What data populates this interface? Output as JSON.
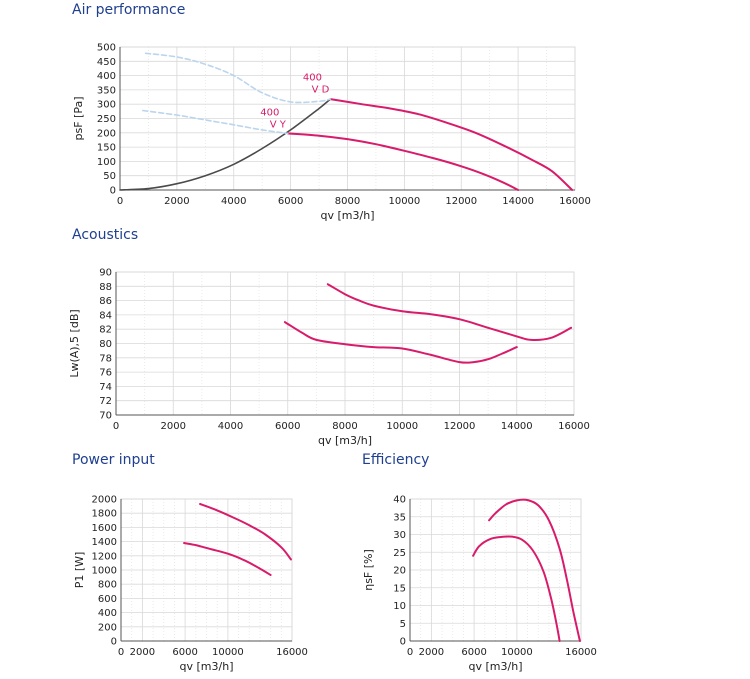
{
  "sections": {
    "air": "Air performance",
    "acoustics": "Acoustics",
    "power": "Power input",
    "efficiency": "Efficiency"
  },
  "colors": {
    "curve": "#d81b6a",
    "system": "#4a4a4a",
    "dashed": "#bcd5ee",
    "grid": "#d9d9d9",
    "title": "#1f3f8f"
  },
  "chart_data": [
    {
      "id": "air",
      "type": "line",
      "title": "Air performance",
      "xlabel": "qv [m3/h]",
      "ylabel": "psF [Pa]",
      "xlim": [
        0,
        16000
      ],
      "ylim": [
        0,
        500
      ],
      "xticks": [
        0,
        2000,
        4000,
        6000,
        8000,
        10000,
        12000,
        14000,
        16000
      ],
      "yticks": [
        0,
        50,
        100,
        150,
        200,
        250,
        300,
        350,
        400,
        450,
        500
      ],
      "grid": true,
      "series": [
        {
          "name": "400 V D",
          "style": "curve",
          "label": [
            "400",
            "V D"
          ],
          "label_at": [
            7400,
            320
          ],
          "x": [
            7400,
            8500,
            9500,
            10500,
            11500,
            12500,
            13500,
            14500,
            15200,
            15900
          ],
          "y": [
            318,
            300,
            285,
            265,
            235,
            200,
            155,
            105,
            65,
            0
          ]
        },
        {
          "name": "400 V Y",
          "style": "curve",
          "label": [
            "400",
            "V Y"
          ],
          "label_at": [
            5900,
            198
          ],
          "x": [
            5900,
            7000,
            8000,
            9000,
            10000,
            11000,
            12000,
            12800,
            13500,
            14000
          ],
          "y": [
            198,
            190,
            178,
            160,
            137,
            112,
            83,
            55,
            25,
            0
          ]
        },
        {
          "style": "system",
          "x": [
            0,
            1000,
            2000,
            3000,
            4000,
            5000,
            6000,
            7000,
            7400
          ],
          "y": [
            0,
            5,
            22,
            50,
            90,
            145,
            210,
            285,
            318
          ]
        },
        {
          "style": "dashed",
          "x": [
            900,
            2000,
            3000,
            4000,
            5000,
            6000,
            7000,
            7400
          ],
          "y": [
            478,
            465,
            440,
            400,
            340,
            308,
            310,
            318
          ]
        },
        {
          "style": "dashed",
          "x": [
            800,
            2000,
            3000,
            4000,
            5000,
            5900
          ],
          "y": [
            278,
            262,
            245,
            228,
            210,
            198
          ]
        }
      ]
    },
    {
      "id": "acoustics",
      "type": "line",
      "title": "Acoustics",
      "xlabel": "qv [m3/h]",
      "ylabel": "Lw(A),5 [dB]",
      "xlim": [
        0,
        16000
      ],
      "ylim": [
        70,
        90
      ],
      "xticks": [
        0,
        2000,
        4000,
        6000,
        8000,
        10000,
        12000,
        14000,
        16000
      ],
      "yticks": [
        70,
        72,
        74,
        76,
        78,
        80,
        82,
        84,
        86,
        88,
        90
      ],
      "grid": true,
      "series": [
        {
          "style": "curve",
          "x": [
            7400,
            8000,
            8500,
            9000,
            10000,
            11000,
            12000,
            13000,
            14000,
            14500,
            15200,
            15900
          ],
          "y": [
            88.3,
            86.9,
            86.0,
            85.3,
            84.5,
            84.1,
            83.4,
            82.2,
            81.0,
            80.5,
            80.8,
            82.2
          ]
        },
        {
          "style": "curve",
          "x": [
            5900,
            6500,
            7000,
            8000,
            9000,
            10000,
            11000,
            12000,
            12500,
            13000,
            13500,
            14000
          ],
          "y": [
            83.0,
            81.5,
            80.5,
            79.9,
            79.5,
            79.3,
            78.4,
            77.4,
            77.4,
            77.8,
            78.6,
            79.5
          ]
        }
      ]
    },
    {
      "id": "power",
      "type": "line",
      "title": "Power input",
      "xlabel": "qv [m3/h]",
      "ylabel": "P1 [W]",
      "xlim": [
        0,
        16000
      ],
      "ylim": [
        0,
        2000
      ],
      "xticks": [
        0,
        2000,
        6000,
        10000,
        16000
      ],
      "yticks": [
        0,
        200,
        400,
        600,
        800,
        1000,
        1200,
        1400,
        1600,
        1800,
        2000
      ],
      "grid": true,
      "series": [
        {
          "style": "curve",
          "x": [
            7400,
            9000,
            10500,
            12000,
            13500,
            15000,
            15900
          ],
          "y": [
            1930,
            1840,
            1740,
            1630,
            1500,
            1320,
            1150
          ]
        },
        {
          "style": "curve",
          "x": [
            5900,
            7000,
            8500,
            10000,
            11500,
            13000,
            14000
          ],
          "y": [
            1380,
            1350,
            1290,
            1230,
            1140,
            1020,
            930
          ]
        }
      ]
    },
    {
      "id": "efficiency",
      "type": "line",
      "title": "Efficiency",
      "xlabel": "qv [m3/h]",
      "ylabel": "ηsF [%]",
      "xlim": [
        0,
        16000
      ],
      "ylim": [
        0,
        40
      ],
      "xticks": [
        0,
        2000,
        6000,
        10000,
        16000
      ],
      "yticks": [
        0,
        5,
        10,
        15,
        20,
        25,
        30,
        35,
        40
      ],
      "grid": true,
      "series": [
        {
          "style": "curve",
          "x": [
            7400,
            8000,
            9000,
            10000,
            11000,
            12000,
            13000,
            14000,
            14700,
            15300,
            15900
          ],
          "y": [
            34.0,
            36.0,
            38.5,
            39.6,
            39.7,
            38.2,
            34.0,
            26.0,
            17.0,
            8.0,
            0
          ]
        },
        {
          "style": "curve",
          "x": [
            5900,
            6500,
            7500,
            8500,
            9500,
            10500,
            11500,
            12500,
            13200,
            13700,
            14000
          ],
          "y": [
            24.0,
            26.8,
            28.7,
            29.3,
            29.4,
            28.5,
            25.5,
            19.5,
            12.0,
            5.0,
            0
          ]
        }
      ]
    }
  ]
}
